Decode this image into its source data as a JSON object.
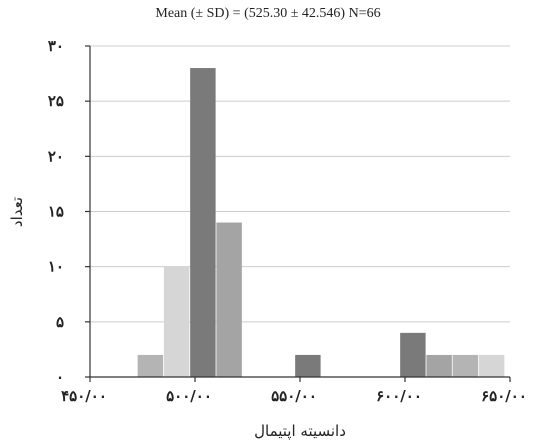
{
  "chart_data": {
    "type": "bar",
    "title": "Mean (± SD) = (525.30 ± 42.546)     N=66",
    "xlabel": "دانسیته اپتیمال",
    "ylabel": "تعداد",
    "ylim": [
      0,
      30
    ],
    "xlim": [
      450,
      650
    ],
    "yticks": [
      0,
      5,
      10,
      15,
      20,
      25,
      30
    ],
    "ytick_labels": [
      "۰",
      "۵",
      "۱۰",
      "۱۵",
      "۲۰",
      "۲۵",
      "۳۰"
    ],
    "xticks": [
      450,
      500,
      550,
      600,
      650
    ],
    "xtick_labels": [
      "۴۵۰/۰۰",
      "۵۰۰/۰۰",
      "۵۵۰/۰۰",
      "۶۰۰/۰۰",
      "۶۵۰/۰۰"
    ],
    "bin_width": 12.5,
    "bins": [
      {
        "x_start": 472.5,
        "count": 2,
        "color": "#b4b4b4"
      },
      {
        "x_start": 485.0,
        "count": 10,
        "color": "#d6d6d6"
      },
      {
        "x_start": 497.5,
        "count": 28,
        "color": "#7a7a7a"
      },
      {
        "x_start": 510.0,
        "count": 14,
        "color": "#a4a4a4"
      },
      {
        "x_start": 547.5,
        "count": 2,
        "color": "#7a7a7a"
      },
      {
        "x_start": 597.5,
        "count": 4,
        "color": "#7a7a7a"
      },
      {
        "x_start": 610.0,
        "count": 2,
        "color": "#a4a4a4"
      },
      {
        "x_start": 622.5,
        "count": 2,
        "color": "#b4b4b4"
      },
      {
        "x_start": 635.0,
        "count": 2,
        "color": "#d6d6d6"
      }
    ],
    "grid": "horizontal",
    "gridline_color": "#cccccc"
  }
}
